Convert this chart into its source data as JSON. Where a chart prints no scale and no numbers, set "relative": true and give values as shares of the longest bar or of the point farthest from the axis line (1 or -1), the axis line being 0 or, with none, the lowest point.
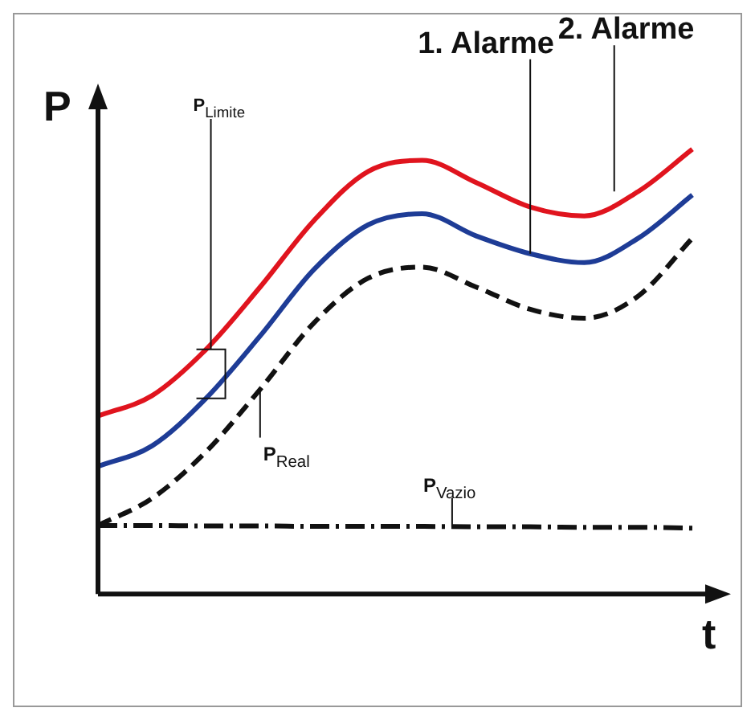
{
  "chart_data": {
    "type": "line",
    "relative": true,
    "xlabel": "t",
    "ylabel": "P",
    "categories": [
      null,
      null,
      null,
      null,
      null,
      null,
      null,
      null,
      null,
      null,
      null,
      null
    ],
    "series": [
      {
        "name": "2. Alarme",
        "color": "#e0141e",
        "values": [
          0.4,
          0.446,
          0.55,
          0.69,
          0.84,
          0.95,
          0.975,
          0.925,
          0.87,
          0.85,
          0.905,
          1.0
        ]
      },
      {
        "name": "1. Alarme",
        "color": "#1e3c96",
        "values": [
          0.287,
          0.333,
          0.44,
          0.58,
          0.73,
          0.83,
          0.855,
          0.805,
          0.765,
          0.745,
          0.8,
          0.897
        ]
      },
      {
        "name": "P$_{Real}$",
        "color": "#111111",
        "line_style": "dashed",
        "values": [
          0.154,
          0.215,
          0.32,
          0.46,
          0.61,
          0.71,
          0.735,
          0.69,
          0.64,
          0.62,
          0.67,
          0.8
        ]
      },
      {
        "name": "P$_{Vazio}$",
        "color": "#111111",
        "line_style": "dashdot",
        "values": [
          0.154,
          0.154,
          0.153,
          0.153,
          0.152,
          0.152,
          0.152,
          0.151,
          0.151,
          0.15,
          0.15,
          0.148
        ]
      }
    ],
    "annotations": [
      "P$_{Limite}$"
    ],
    "grid": false,
    "legend": false,
    "marker": "none"
  }
}
